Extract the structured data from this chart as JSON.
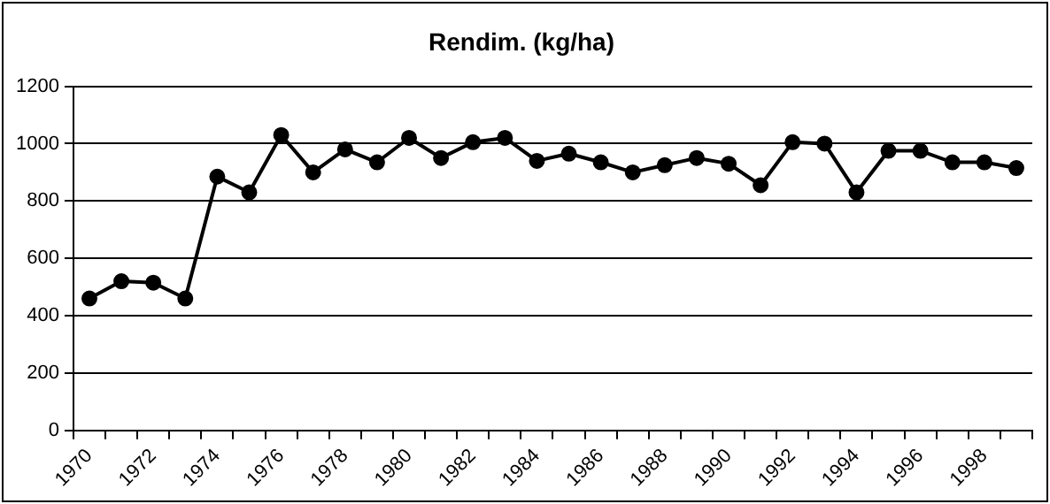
{
  "chart_data": {
    "type": "line",
    "title": "Rendim. (kg/ha)",
    "categories": [
      "1970",
      null,
      "1972",
      null,
      "1974",
      null,
      "1976",
      null,
      "1978",
      null,
      "1980",
      null,
      "1982",
      null,
      "1984",
      null,
      "1986",
      null,
      "1988",
      null,
      "1990",
      null,
      "1992",
      null,
      "1994",
      null,
      "1996",
      null,
      "1998",
      null
    ],
    "series": [
      {
        "color": "#000000",
        "values": [
          460,
          520,
          515,
          460,
          885,
          830,
          1030,
          900,
          980,
          935,
          1020,
          950,
          1005,
          1020,
          940,
          965,
          935,
          900,
          925,
          950,
          930,
          855,
          1005,
          1000,
          830,
          975,
          975,
          935,
          935,
          915
        ]
      }
    ],
    "ylim": [
      0,
      1200
    ],
    "yticks": [
      0,
      200,
      400,
      600,
      800,
      1000,
      1200
    ],
    "grid": "y",
    "legend": false,
    "marker": "circle",
    "line_style": "solid"
  }
}
